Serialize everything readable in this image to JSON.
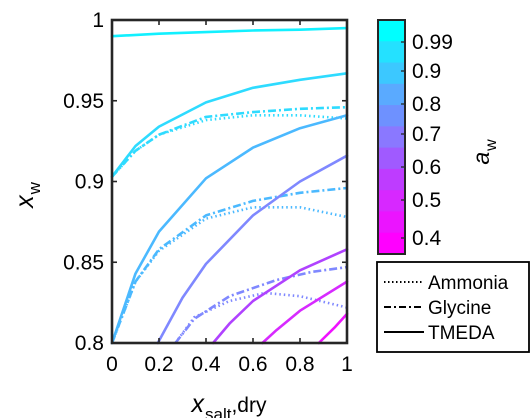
{
  "chart_data": {
    "type": "line",
    "xlabel": {
      "main": "x",
      "sub": "salt",
      "suffix": ",dry"
    },
    "ylabel": {
      "main": "x",
      "sub": "w"
    },
    "xlim": [
      0,
      1
    ],
    "ylim": [
      0.8,
      1
    ],
    "xticks": [
      0,
      0.2,
      0.4,
      0.6,
      0.8,
      1
    ],
    "xtick_labels": [
      "0",
      "0.2",
      "0.4",
      "0.6",
      "0.8",
      "1"
    ],
    "yticks": [
      0.8,
      0.85,
      0.9,
      0.95,
      1
    ],
    "ytick_labels": [
      "0.8",
      "0.85",
      "0.9",
      "0.95",
      "1"
    ],
    "grid": false,
    "colorbar": {
      "label": {
        "main": "a",
        "sub": "w"
      },
      "tick_labels": [
        "0.99",
        "0.9",
        "0.8",
        "0.7",
        "0.6",
        "0.5",
        "0.4"
      ],
      "colors": [
        "#00FFFF",
        "#24E1FF",
        "#3CC8FF",
        "#5AAAFF",
        "#6E91FF",
        "#8A78FF",
        "#A05AFF",
        "#BE3CFF",
        "#D728FF",
        "#EB14FF",
        "#FF00FF"
      ]
    },
    "legend": {
      "placement": "bottom-right",
      "entries": [
        {
          "label": "Ammonia",
          "style": "dotted"
        },
        {
          "label": "Glycine",
          "style": "dashdot"
        },
        {
          "label": "TMEDA",
          "style": "solid"
        }
      ]
    },
    "series": [
      {
        "solvent": "TMEDA",
        "aw": 0.99,
        "color": "#12F0FF",
        "style": "solid",
        "points": [
          [
            0,
            0.99
          ],
          [
            0.2,
            0.9915
          ],
          [
            0.4,
            0.9925
          ],
          [
            0.6,
            0.9935
          ],
          [
            0.8,
            0.994
          ],
          [
            1,
            0.995
          ]
        ]
      },
      {
        "solvent": "TMEDA",
        "aw": 0.9,
        "color": "#2EDBFF",
        "style": "solid",
        "points": [
          [
            0,
            0.903
          ],
          [
            0.1,
            0.922
          ],
          [
            0.2,
            0.934
          ],
          [
            0.4,
            0.949
          ],
          [
            0.6,
            0.958
          ],
          [
            0.8,
            0.963
          ],
          [
            1,
            0.967
          ]
        ]
      },
      {
        "solvent": "Glycine",
        "aw": 0.9,
        "color": "#2EDBFF",
        "style": "dashdot",
        "points": [
          [
            0,
            0.903
          ],
          [
            0.1,
            0.919
          ],
          [
            0.2,
            0.929
          ],
          [
            0.4,
            0.94
          ],
          [
            0.6,
            0.943
          ],
          [
            0.8,
            0.945
          ],
          [
            1,
            0.946
          ]
        ]
      },
      {
        "solvent": "Ammonia",
        "aw": 0.9,
        "color": "#2EDBFF",
        "style": "dotted",
        "points": [
          [
            0,
            0.903
          ],
          [
            0.1,
            0.919
          ],
          [
            0.2,
            0.929
          ],
          [
            0.4,
            0.938
          ],
          [
            0.6,
            0.941
          ],
          [
            0.8,
            0.941
          ],
          [
            1,
            0.939
          ]
        ]
      },
      {
        "solvent": "TMEDA",
        "aw": 0.8,
        "color": "#4BB9FF",
        "style": "solid",
        "points": [
          [
            0,
            0.8
          ],
          [
            0.1,
            0.843
          ],
          [
            0.2,
            0.869
          ],
          [
            0.4,
            0.902
          ],
          [
            0.6,
            0.921
          ],
          [
            0.8,
            0.933
          ],
          [
            1,
            0.941
          ]
        ]
      },
      {
        "solvent": "Glycine",
        "aw": 0.8,
        "color": "#4BB9FF",
        "style": "dashdot",
        "points": [
          [
            0,
            0.8
          ],
          [
            0.1,
            0.838
          ],
          [
            0.2,
            0.858
          ],
          [
            0.4,
            0.879
          ],
          [
            0.6,
            0.888
          ],
          [
            0.8,
            0.893
          ],
          [
            1,
            0.896
          ]
        ]
      },
      {
        "solvent": "Ammonia",
        "aw": 0.8,
        "color": "#4BB9FF",
        "style": "dotted",
        "points": [
          [
            0,
            0.8
          ],
          [
            0.1,
            0.838
          ],
          [
            0.2,
            0.857
          ],
          [
            0.4,
            0.877
          ],
          [
            0.6,
            0.884
          ],
          [
            0.8,
            0.884
          ],
          [
            1,
            0.878
          ]
        ]
      },
      {
        "solvent": "TMEDA",
        "aw": 0.7,
        "color": "#7F88FF",
        "style": "solid",
        "points": [
          [
            0.195,
            0.8
          ],
          [
            0.3,
            0.828
          ],
          [
            0.4,
            0.849
          ],
          [
            0.6,
            0.879
          ],
          [
            0.8,
            0.9
          ],
          [
            1,
            0.916
          ]
        ]
      },
      {
        "solvent": "Glycine",
        "aw": 0.7,
        "color": "#7F88FF",
        "style": "dashdot",
        "points": [
          [
            0.27,
            0.8
          ],
          [
            0.35,
            0.815
          ],
          [
            0.5,
            0.829
          ],
          [
            0.7,
            0.839
          ],
          [
            0.85,
            0.844
          ],
          [
            1,
            0.847
          ]
        ]
      },
      {
        "solvent": "Ammonia",
        "aw": 0.7,
        "color": "#7F88FF",
        "style": "dotted",
        "points": [
          [
            0.27,
            0.8
          ],
          [
            0.35,
            0.816
          ],
          [
            0.5,
            0.826
          ],
          [
            0.65,
            0.831
          ],
          [
            0.8,
            0.829
          ],
          [
            1,
            0.822
          ]
        ]
      },
      {
        "solvent": "TMEDA",
        "aw": 0.6,
        "color": "#B042FF",
        "style": "solid",
        "points": [
          [
            0.43,
            0.8
          ],
          [
            0.5,
            0.812
          ],
          [
            0.6,
            0.826
          ],
          [
            0.8,
            0.845
          ],
          [
            1,
            0.858
          ]
        ]
      },
      {
        "solvent": "TMEDA",
        "aw": 0.5,
        "color": "#D72AFF",
        "style": "solid",
        "points": [
          [
            0.64,
            0.8
          ],
          [
            0.7,
            0.808
          ],
          [
            0.8,
            0.82
          ],
          [
            1,
            0.838
          ]
        ]
      },
      {
        "solvent": "TMEDA",
        "aw": 0.4,
        "color": "#F012FF",
        "style": "solid",
        "points": [
          [
            0.88,
            0.8
          ],
          [
            0.95,
            0.81
          ],
          [
            1,
            0.818
          ]
        ]
      }
    ]
  }
}
